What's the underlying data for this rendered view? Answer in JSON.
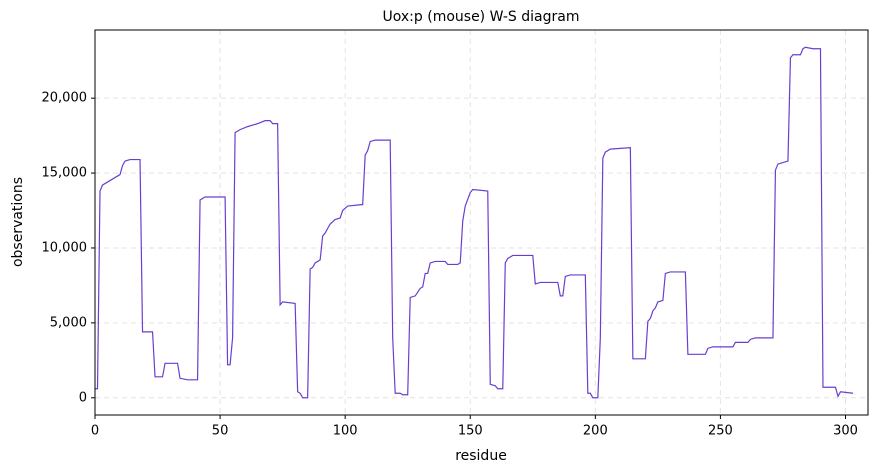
{
  "chart_data": {
    "type": "line",
    "title": "Uox:p (mouse) W-S diagram",
    "xlabel": "residue",
    "ylabel": "observations",
    "xlim": [
      0,
      309
    ],
    "ylim": [
      -1150,
      24550
    ],
    "xticks": [
      0,
      50,
      100,
      150,
      200,
      250,
      300
    ],
    "yticks": [
      0,
      {
        "value": 5000,
        "label": "5,000"
      },
      {
        "value": 10000,
        "label": "10,000"
      },
      {
        "value": 15000,
        "label": "15,000"
      },
      {
        "value": 20000,
        "label": "20,000"
      }
    ],
    "grid": true,
    "series": [
      {
        "color": "#6a3fcf",
        "x": [
          0,
          1,
          2,
          3,
          5,
          7,
          10,
          11,
          12,
          14,
          18,
          19,
          23,
          24,
          27,
          28,
          33,
          34,
          37,
          41,
          42,
          44,
          52,
          53,
          54,
          55,
          56,
          58,
          61,
          65,
          68,
          70,
          71,
          73,
          74,
          75,
          80,
          81,
          82,
          83,
          85,
          86,
          87,
          88,
          90,
          91,
          92,
          94,
          96,
          98,
          99,
          101,
          107,
          108,
          109,
          110,
          112,
          118,
          119,
          120,
          122,
          123,
          125,
          126,
          128,
          130,
          131,
          132,
          133,
          134,
          136,
          140,
          141,
          145,
          146,
          147,
          148,
          150,
          151,
          157,
          158,
          160,
          161,
          163,
          164,
          165,
          167,
          175,
          176,
          178,
          185,
          186,
          187,
          188,
          190,
          196,
          197,
          198,
          199,
          201,
          202,
          203,
          204,
          206,
          214,
          215,
          220,
          221,
          222,
          223,
          224,
          225,
          227,
          228,
          230,
          236,
          237,
          244,
          245,
          247,
          255,
          256,
          261,
          262,
          264,
          271,
          272,
          273,
          275,
          277,
          278,
          279,
          282,
          283,
          284,
          287,
          290,
          291,
          296,
          297,
          298,
          303
        ],
        "values": [
          600,
          600,
          13800,
          14200,
          14400,
          14600,
          14900,
          15500,
          15800,
          15900,
          15900,
          4400,
          4400,
          1400,
          1400,
          2300,
          2300,
          1300,
          1200,
          1200,
          13200,
          13400,
          13400,
          2200,
          2200,
          4000,
          17700,
          17900,
          18100,
          18300,
          18500,
          18500,
          18300,
          18300,
          6200,
          6400,
          6300,
          400,
          300,
          0,
          0,
          8600,
          8700,
          9000,
          9200,
          10800,
          11000,
          11600,
          11900,
          12000,
          12500,
          12800,
          12900,
          16200,
          16500,
          17100,
          17200,
          17200,
          4000,
          300,
          300,
          200,
          200,
          6700,
          6800,
          7300,
          7400,
          8300,
          8300,
          9000,
          9100,
          9100,
          8900,
          8900,
          9000,
          11800,
          12800,
          13700,
          13900,
          13800,
          900,
          800,
          600,
          600,
          9000,
          9300,
          9500,
          9500,
          7600,
          7700,
          7700,
          6800,
          6800,
          8100,
          8200,
          8200,
          300,
          300,
          0,
          0,
          4000,
          16000,
          16400,
          16600,
          16700,
          2600,
          2600,
          5100,
          5300,
          5800,
          6000,
          6400,
          6500,
          8300,
          8400,
          8400,
          2900,
          2900,
          3300,
          3400,
          3400,
          3700,
          3700,
          3900,
          4000,
          4000,
          15200,
          15600,
          15700,
          15800,
          22700,
          22900,
          22900,
          23300,
          23400,
          23300,
          23300,
          700,
          700,
          100,
          400,
          300
        ]
      }
    ]
  }
}
